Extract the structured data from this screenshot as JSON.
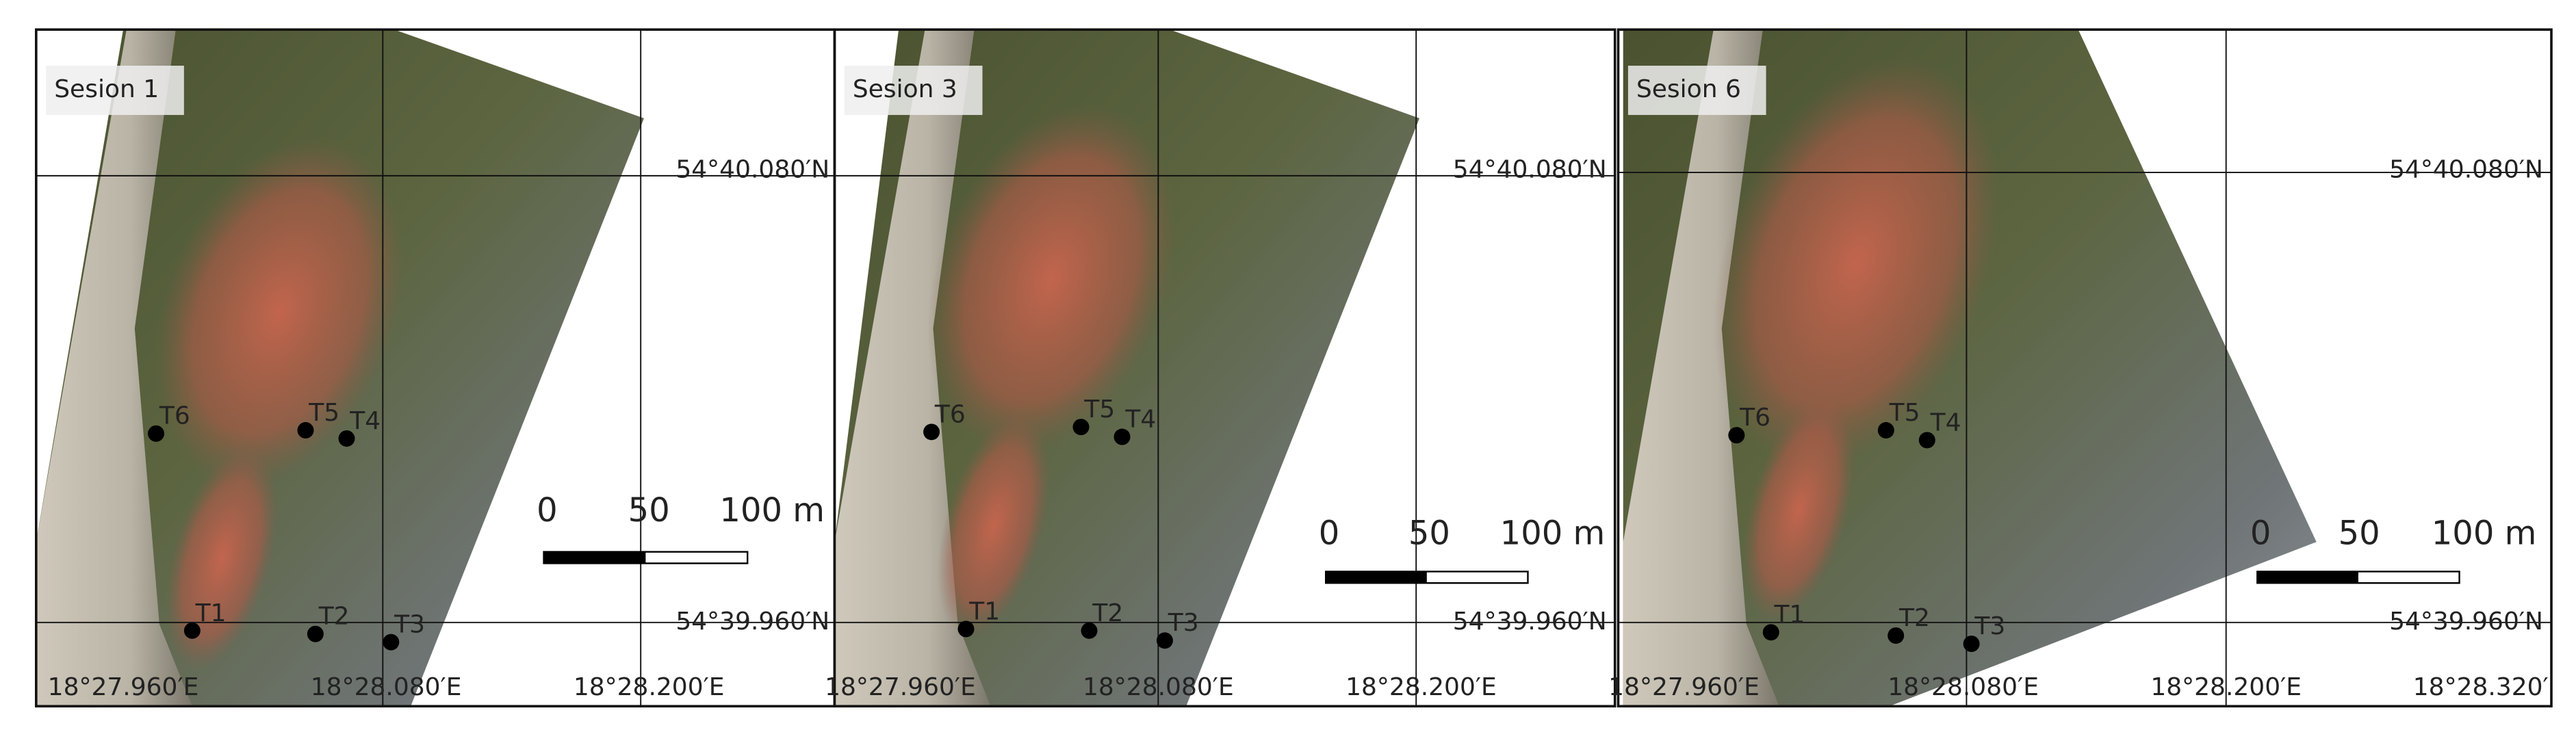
{
  "panels": [
    {
      "title": "Sesion 1",
      "stations": [
        "T6",
        "T5",
        "T4",
        "T1",
        "T2",
        "T3"
      ],
      "latitude_labels": [
        "54°40.080′N",
        "54°39.960′N"
      ],
      "longitude_labels": [
        "18°27.960′E",
        "18°28.080′E",
        "18°28.200′E"
      ],
      "scale_bar": [
        "0",
        "50",
        "100 m"
      ]
    },
    {
      "title": "Sesion 3",
      "stations": [
        "T6",
        "T5",
        "T4",
        "T1",
        "T2",
        "T3"
      ],
      "latitude_labels": [
        "54°40.080′N",
        "54°39.960′N"
      ],
      "longitude_labels": [
        "18°27.960′E",
        "18°28.080′E",
        "18°28.200′E"
      ],
      "scale_bar": [
        "0",
        "50",
        "100 m"
      ]
    },
    {
      "title": "Sesion 6",
      "stations": [
        "T6",
        "T5",
        "T4",
        "T1",
        "T2",
        "T3"
      ],
      "latitude_labels": [
        "54°40.080′N",
        "54°39.960′N"
      ],
      "longitude_labels": [
        "18°27.960′E",
        "18°28.080′E",
        "18°28.200′E",
        "18°28.320′"
      ],
      "scale_bar": [
        "0",
        "50",
        "100 m"
      ]
    }
  ]
}
